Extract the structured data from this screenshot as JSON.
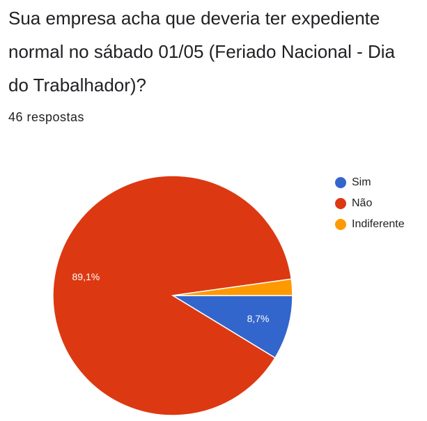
{
  "chart_data": {
    "type": "pie",
    "title": "Sua empresa acha que deveria ter expediente normal no sábado 01/05 (Feriado Nacional - Dia do Trabalhador)?",
    "subtitle": "46 respostas",
    "categories": [
      "Sim",
      "Não",
      "Indiferente"
    ],
    "values": [
      8.7,
      89.1,
      2.2
    ],
    "value_labels": [
      "8,7%",
      "89,1%",
      null
    ],
    "colors": [
      "#3366cc",
      "#dc3912",
      "#ff9900"
    ],
    "legend": "right"
  }
}
